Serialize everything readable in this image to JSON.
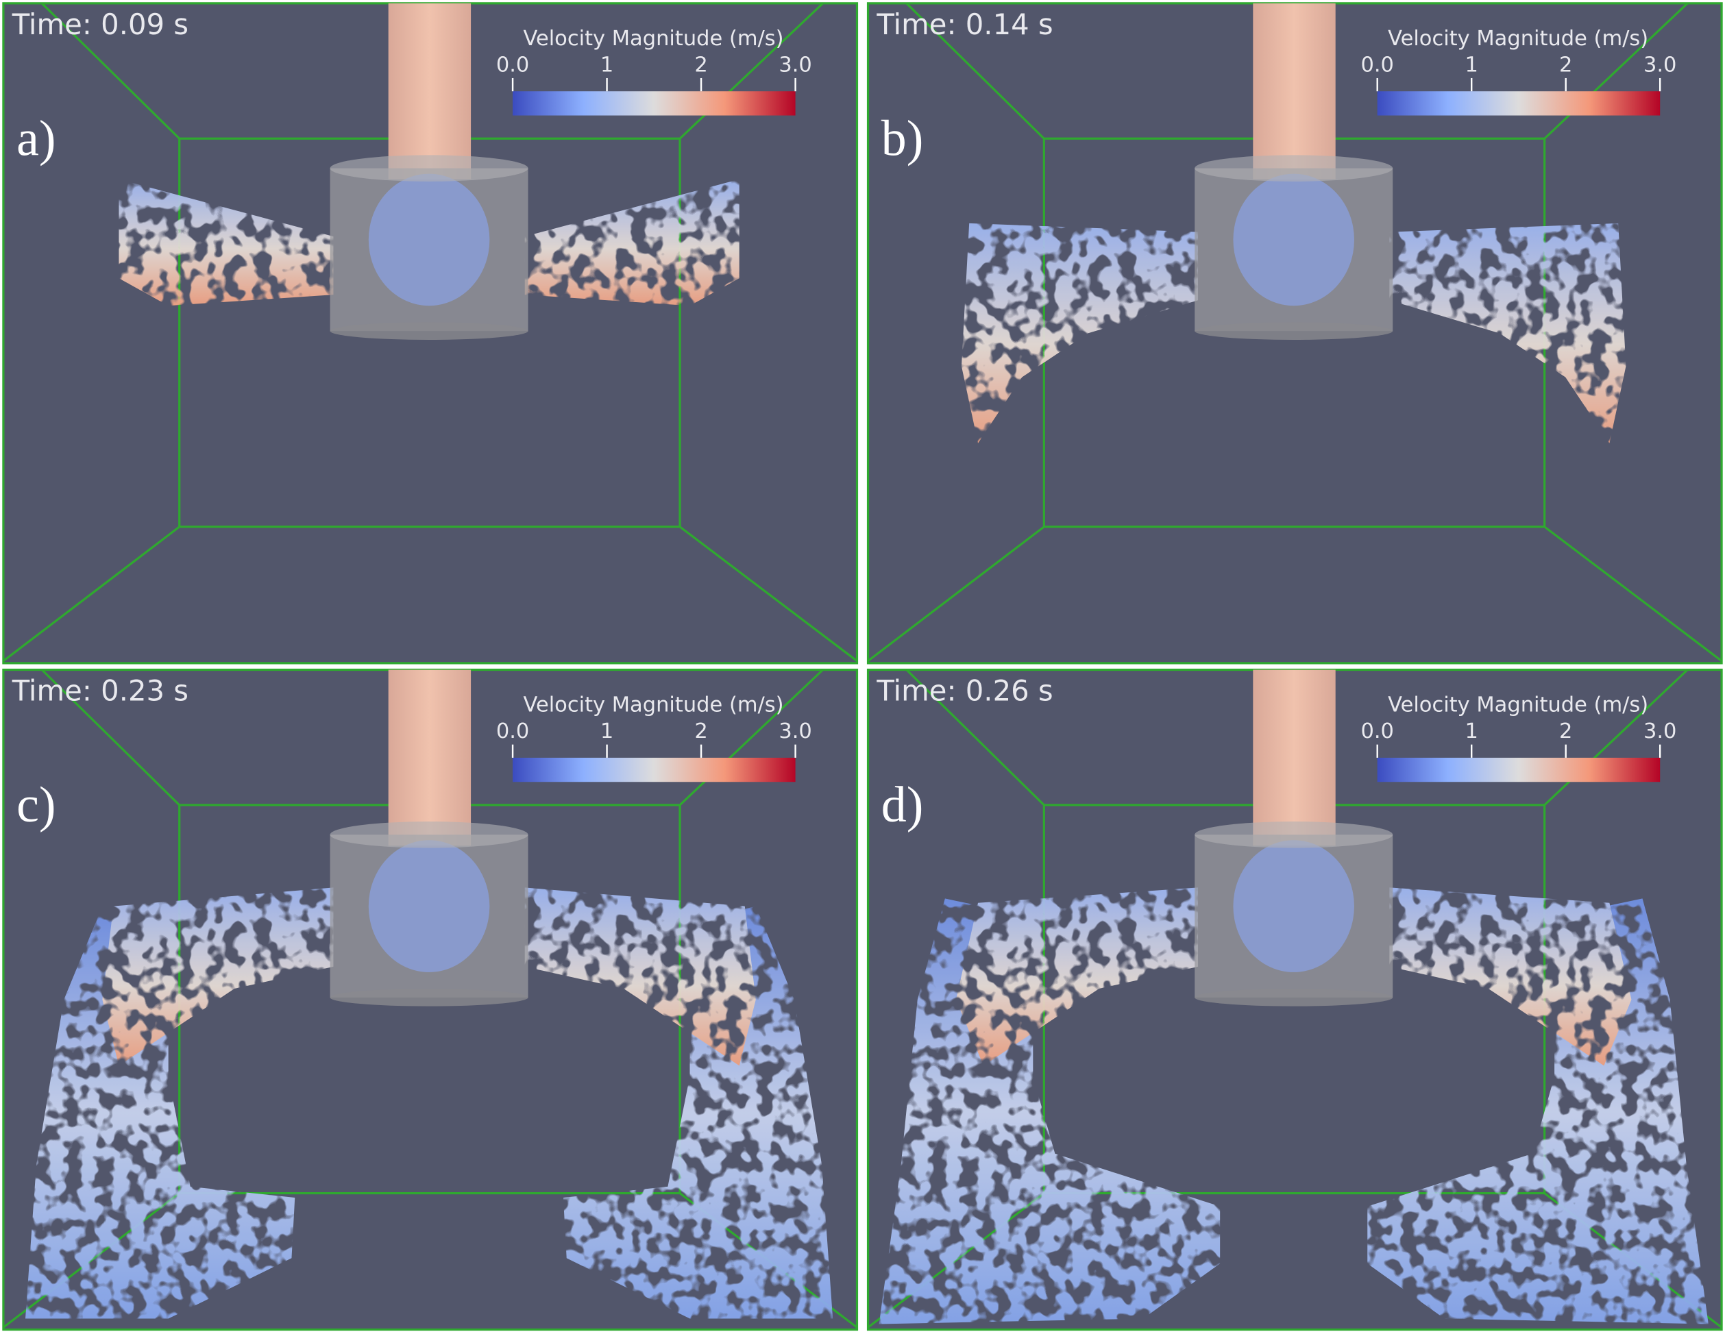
{
  "panels": [
    {
      "label": "a)",
      "time": "Time: 0.09 s",
      "colorbar": {
        "title": "Velocity Magnitude (m/s)",
        "range": [
          0,
          3
        ],
        "ticks": [
          {
            "value": 0,
            "label": "0.0"
          },
          1,
          2,
          {
            "value": 3,
            "label": "3.0"
          }
        ]
      }
    },
    {
      "label": "b)",
      "time": "Time: 0.14 s",
      "colorbar": {
        "title": "Velocity Magnitude (m/s)",
        "range": [
          0,
          3
        ],
        "ticks": [
          {
            "value": 0,
            "label": "0.0"
          },
          1,
          2,
          {
            "value": 3,
            "label": "3.0"
          }
        ]
      }
    },
    {
      "label": "c)",
      "time": "Time: 0.23 s",
      "colorbar": {
        "title": "Velocity Magnitude (m/s)",
        "range": [
          0,
          3
        ],
        "ticks": [
          {
            "value": 0,
            "label": "0.0"
          },
          1,
          2,
          {
            "value": 3,
            "label": "3.0"
          }
        ]
      }
    },
    {
      "label": "d)",
      "time": "Time: 0.26 s",
      "colorbar": {
        "title": "Velocity Magnitude (m/s)",
        "range": [
          0,
          3
        ],
        "ticks": [
          {
            "value": 0,
            "label": "0.0"
          },
          1,
          2,
          {
            "value": 3,
            "label": "3.0"
          }
        ]
      }
    }
  ]
}
